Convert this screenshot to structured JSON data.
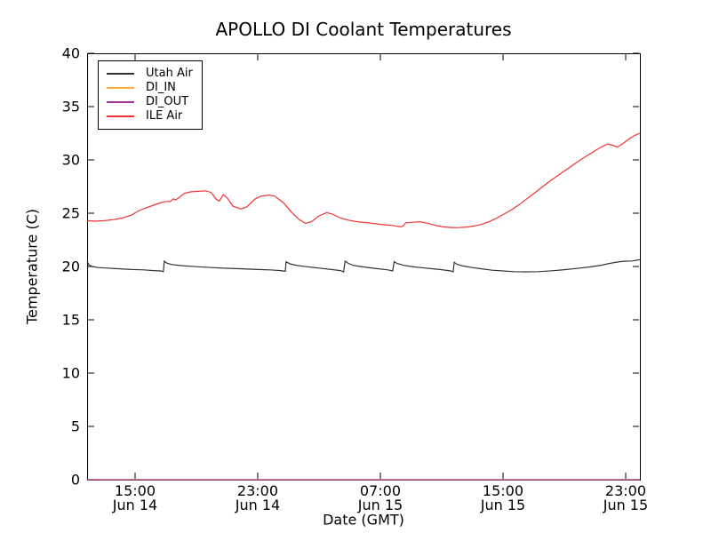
{
  "window": {
    "title": "APOLLO DI Coolant Temperatures"
  },
  "chart_data": {
    "type": "line",
    "title": "APOLLO DI Coolant Temperatures",
    "xlabel": "Date (GMT)",
    "ylabel": "Temperature (C)",
    "ylim": [
      0,
      40
    ],
    "yticks": [
      0,
      5,
      10,
      15,
      20,
      25,
      30,
      35,
      40
    ],
    "x_unit": "hours since Jun 14 00:00 GMT",
    "xlim_hours": [
      11.87,
      47.93
    ],
    "xticks": [
      {
        "hour": 15,
        "time": "15:00",
        "date": "Jun 14"
      },
      {
        "hour": 23,
        "time": "23:00",
        "date": "Jun 14"
      },
      {
        "hour": 31,
        "time": "07:00",
        "date": "Jun 15"
      },
      {
        "hour": 39,
        "time": "15:00",
        "date": "Jun 15"
      },
      {
        "hour": 47,
        "time": "23:00",
        "date": "Jun 15"
      }
    ],
    "grid": false,
    "legend_position": "upper left",
    "axis_color": "#000000",
    "series": [
      {
        "name": "Utah Air",
        "color": "#333333",
        "points": [
          [
            11.87,
            20.5
          ],
          [
            12.0,
            20.15
          ],
          [
            12.2,
            20.0
          ],
          [
            12.6,
            19.9
          ],
          [
            13.2,
            19.85
          ],
          [
            14.0,
            19.78
          ],
          [
            14.8,
            19.72
          ],
          [
            15.6,
            19.68
          ],
          [
            16.2,
            19.62
          ],
          [
            16.7,
            19.58
          ],
          [
            16.85,
            19.52
          ],
          [
            16.9,
            20.5
          ],
          [
            17.1,
            20.3
          ],
          [
            17.4,
            20.18
          ],
          [
            18.0,
            20.08
          ],
          [
            19.0,
            19.98
          ],
          [
            20.0,
            19.9
          ],
          [
            21.0,
            19.83
          ],
          [
            22.0,
            19.78
          ],
          [
            23.0,
            19.72
          ],
          [
            23.8,
            19.68
          ],
          [
            24.5,
            19.62
          ],
          [
            24.8,
            19.55
          ],
          [
            24.85,
            20.45
          ],
          [
            25.1,
            20.25
          ],
          [
            25.5,
            20.12
          ],
          [
            26.0,
            20.02
          ],
          [
            26.6,
            19.92
          ],
          [
            27.2,
            19.82
          ],
          [
            27.8,
            19.72
          ],
          [
            28.4,
            19.62
          ],
          [
            28.6,
            19.5
          ],
          [
            28.7,
            20.5
          ],
          [
            28.9,
            20.3
          ],
          [
            29.2,
            20.12
          ],
          [
            29.7,
            20.0
          ],
          [
            30.3,
            19.88
          ],
          [
            30.9,
            19.78
          ],
          [
            31.5,
            19.68
          ],
          [
            31.8,
            19.58
          ],
          [
            31.9,
            20.45
          ],
          [
            32.1,
            20.28
          ],
          [
            32.5,
            20.12
          ],
          [
            33.0,
            20.0
          ],
          [
            33.6,
            19.9
          ],
          [
            34.3,
            19.8
          ],
          [
            35.0,
            19.7
          ],
          [
            35.6,
            19.58
          ],
          [
            35.75,
            19.5
          ],
          [
            35.82,
            20.4
          ],
          [
            36.0,
            20.2
          ],
          [
            36.4,
            20.05
          ],
          [
            37.0,
            19.9
          ],
          [
            37.6,
            19.78
          ],
          [
            38.3,
            19.65
          ],
          [
            39.0,
            19.58
          ],
          [
            39.7,
            19.52
          ],
          [
            40.5,
            19.5
          ],
          [
            41.3,
            19.52
          ],
          [
            42.2,
            19.6
          ],
          [
            43.0,
            19.7
          ],
          [
            43.8,
            19.82
          ],
          [
            44.6,
            19.95
          ],
          [
            45.4,
            20.12
          ],
          [
            46.0,
            20.3
          ],
          [
            46.6,
            20.45
          ],
          [
            47.0,
            20.5
          ],
          [
            47.4,
            20.52
          ],
          [
            47.7,
            20.58
          ],
          [
            47.93,
            20.65
          ]
        ]
      },
      {
        "name": "DI_IN",
        "color": "#ffab3a",
        "points": [
          [
            11.87,
            0
          ],
          [
            47.93,
            0
          ]
        ]
      },
      {
        "name": "DI_OUT",
        "color": "#993399",
        "points": [
          [
            11.87,
            0
          ],
          [
            47.93,
            0
          ]
        ]
      },
      {
        "name": "ILE Air",
        "color": "#ee3333",
        "points": [
          [
            11.87,
            24.3
          ],
          [
            12.4,
            24.25
          ],
          [
            13.0,
            24.3
          ],
          [
            13.6,
            24.4
          ],
          [
            14.2,
            24.55
          ],
          [
            14.8,
            24.85
          ],
          [
            15.2,
            25.2
          ],
          [
            15.7,
            25.5
          ],
          [
            16.2,
            25.75
          ],
          [
            16.7,
            26.0
          ],
          [
            17.0,
            26.1
          ],
          [
            17.3,
            26.1
          ],
          [
            17.5,
            26.35
          ],
          [
            17.65,
            26.25
          ],
          [
            17.9,
            26.5
          ],
          [
            18.2,
            26.85
          ],
          [
            18.6,
            27.0
          ],
          [
            19.1,
            27.05
          ],
          [
            19.6,
            27.1
          ],
          [
            19.95,
            26.95
          ],
          [
            20.3,
            26.3
          ],
          [
            20.5,
            26.15
          ],
          [
            20.75,
            26.75
          ],
          [
            21.0,
            26.45
          ],
          [
            21.4,
            25.65
          ],
          [
            21.9,
            25.4
          ],
          [
            22.3,
            25.6
          ],
          [
            22.8,
            26.3
          ],
          [
            23.2,
            26.6
          ],
          [
            23.7,
            26.7
          ],
          [
            24.1,
            26.6
          ],
          [
            24.7,
            25.95
          ],
          [
            25.2,
            25.1
          ],
          [
            25.7,
            24.4
          ],
          [
            26.1,
            24.05
          ],
          [
            26.5,
            24.2
          ],
          [
            27.0,
            24.75
          ],
          [
            27.5,
            25.05
          ],
          [
            27.9,
            24.9
          ],
          [
            28.4,
            24.55
          ],
          [
            28.9,
            24.35
          ],
          [
            29.5,
            24.2
          ],
          [
            30.2,
            24.1
          ],
          [
            31.0,
            23.95
          ],
          [
            31.8,
            23.85
          ],
          [
            32.3,
            23.72
          ],
          [
            32.5,
            23.8
          ],
          [
            32.65,
            24.1
          ],
          [
            33.1,
            24.15
          ],
          [
            33.6,
            24.2
          ],
          [
            34.1,
            24.05
          ],
          [
            34.6,
            23.85
          ],
          [
            35.1,
            23.72
          ],
          [
            35.6,
            23.66
          ],
          [
            36.1,
            23.65
          ],
          [
            36.6,
            23.7
          ],
          [
            37.1,
            23.8
          ],
          [
            37.6,
            23.95
          ],
          [
            38.1,
            24.2
          ],
          [
            38.6,
            24.55
          ],
          [
            39.1,
            24.95
          ],
          [
            39.6,
            25.35
          ],
          [
            40.1,
            25.85
          ],
          [
            40.6,
            26.4
          ],
          [
            41.1,
            26.95
          ],
          [
            41.6,
            27.5
          ],
          [
            42.1,
            28.05
          ],
          [
            42.6,
            28.55
          ],
          [
            43.1,
            29.05
          ],
          [
            43.6,
            29.55
          ],
          [
            44.1,
            30.05
          ],
          [
            44.6,
            30.5
          ],
          [
            45.1,
            30.95
          ],
          [
            45.6,
            31.35
          ],
          [
            45.85,
            31.5
          ],
          [
            46.2,
            31.35
          ],
          [
            46.45,
            31.2
          ],
          [
            46.8,
            31.5
          ],
          [
            47.2,
            31.95
          ],
          [
            47.6,
            32.3
          ],
          [
            47.93,
            32.5
          ]
        ]
      }
    ]
  }
}
